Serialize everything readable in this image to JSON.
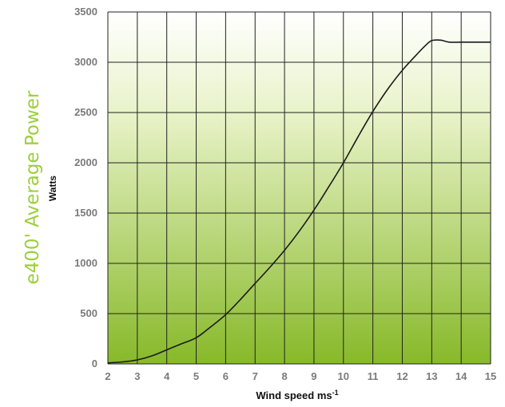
{
  "chart_data": {
    "type": "line",
    "title": "e400' Average Power",
    "xlabel": "Wind speed ms",
    "xlabel_sup": "-1",
    "ylabel": "Watts",
    "xlim": [
      2,
      15
    ],
    "ylim": [
      0,
      3500
    ],
    "x_ticks": [
      2,
      3,
      4,
      5,
      6,
      7,
      8,
      9,
      10,
      11,
      12,
      13,
      14,
      15
    ],
    "y_ticks": [
      0,
      500,
      1000,
      1500,
      2000,
      2500,
      3000,
      3500
    ],
    "grid": true,
    "series": [
      {
        "x": [
          2,
          2.5,
          3,
          3.5,
          4,
          4.5,
          5,
          5.5,
          6,
          6.5,
          7,
          7.5,
          8,
          8.5,
          9,
          9.5,
          10,
          10.5,
          11,
          11.5,
          12,
          12.5,
          12.8,
          13,
          13.3,
          13.6,
          14,
          14.5,
          15
        ],
        "y": [
          10,
          20,
          40,
          80,
          140,
          200,
          260,
          370,
          490,
          640,
          800,
          960,
          1130,
          1320,
          1530,
          1760,
          2000,
          2260,
          2510,
          2730,
          2920,
          3080,
          3170,
          3215,
          3220,
          3200,
          3200,
          3200,
          3200
        ]
      }
    ]
  },
  "colors": {
    "title": "#9ccf3a",
    "line": "#1a1a1a",
    "grid": "#222222",
    "plot_top": "#ffffff",
    "plot_bottom": "#87b929"
  }
}
